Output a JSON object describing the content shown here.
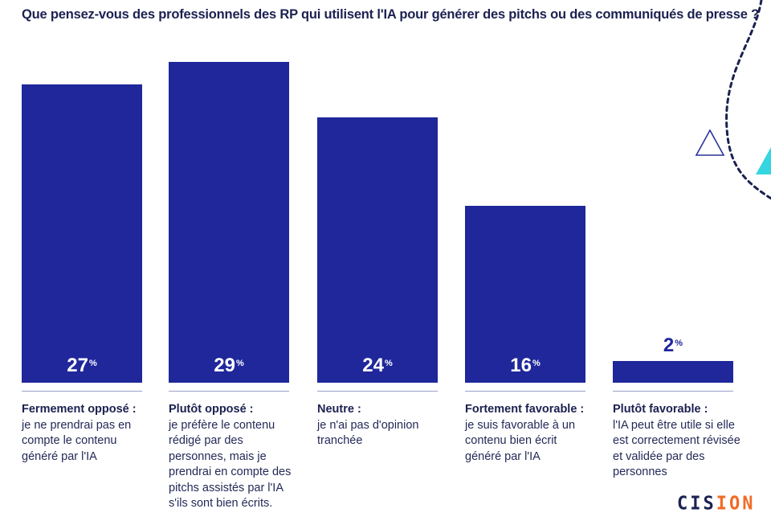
{
  "title": "Que pensez-vous des professionnels des RP qui utilisent l'IA pour générer des pitchs ou des communiqués de presse ?",
  "colors": {
    "bar": "#1f279b",
    "title": "#1b2150",
    "deco_outline": "#2a3399",
    "deco_fill": "#35d6e0",
    "logo_accent": "#f26a26"
  },
  "chart_data": {
    "type": "bar",
    "title": "Que pensez-vous des professionnels des RP qui utilisent l'IA pour générer des pitchs ou des communiqués de presse ?",
    "xlabel": "",
    "ylabel": "",
    "unit": "%",
    "ylim": [
      0,
      31
    ],
    "grid": false,
    "legend": "none",
    "categories": [
      "Fermement opposé",
      "Plutôt opposé",
      "Neutre",
      "Fortement favorable",
      "Plutôt favorable"
    ],
    "values": [
      27,
      29,
      24,
      16,
      2
    ],
    "value_labels": [
      "27",
      "29",
      "24",
      "16",
      "2"
    ],
    "descriptions": [
      "je ne prendrai pas en compte le contenu généré par l'IA",
      "je préfère le contenu rédigé par des personnes, mais je prendrai en compte des pitchs assistés par l'IA s'ils sont bien écrits.",
      "je n'ai pas d'opinion tranchée",
      "je suis favorable à un contenu bien écrit généré par l'IA",
      "l'IA peut être utile si elle est correctement révisée et validée par des personnes"
    ]
  },
  "categories_display": [
    {
      "name": "Fermement opposé :",
      "desc": "je ne prendrai pas en compte le contenu généré par l'IA"
    },
    {
      "name": "Plutôt opposé :",
      "desc": "je préfère le contenu rédigé par des personnes, mais je prendrai en compte des pitchs assistés par l'IA s'ils sont bien écrits."
    },
    {
      "name": "Neutre :",
      "desc": "je n'ai pas d'opinion tranchée"
    },
    {
      "name": "Fortement favorable :",
      "desc": "je suis favorable à un contenu bien écrit généré par l'IA"
    },
    {
      "name": "Plutôt favorable :",
      "desc": "l'IA peut être utile si elle est correctement révisée et validée par des personnes"
    }
  ],
  "percent_sign": "%",
  "logo": {
    "text_start": "CIS",
    "text_accent": "ION",
    "full": "CISION"
  }
}
